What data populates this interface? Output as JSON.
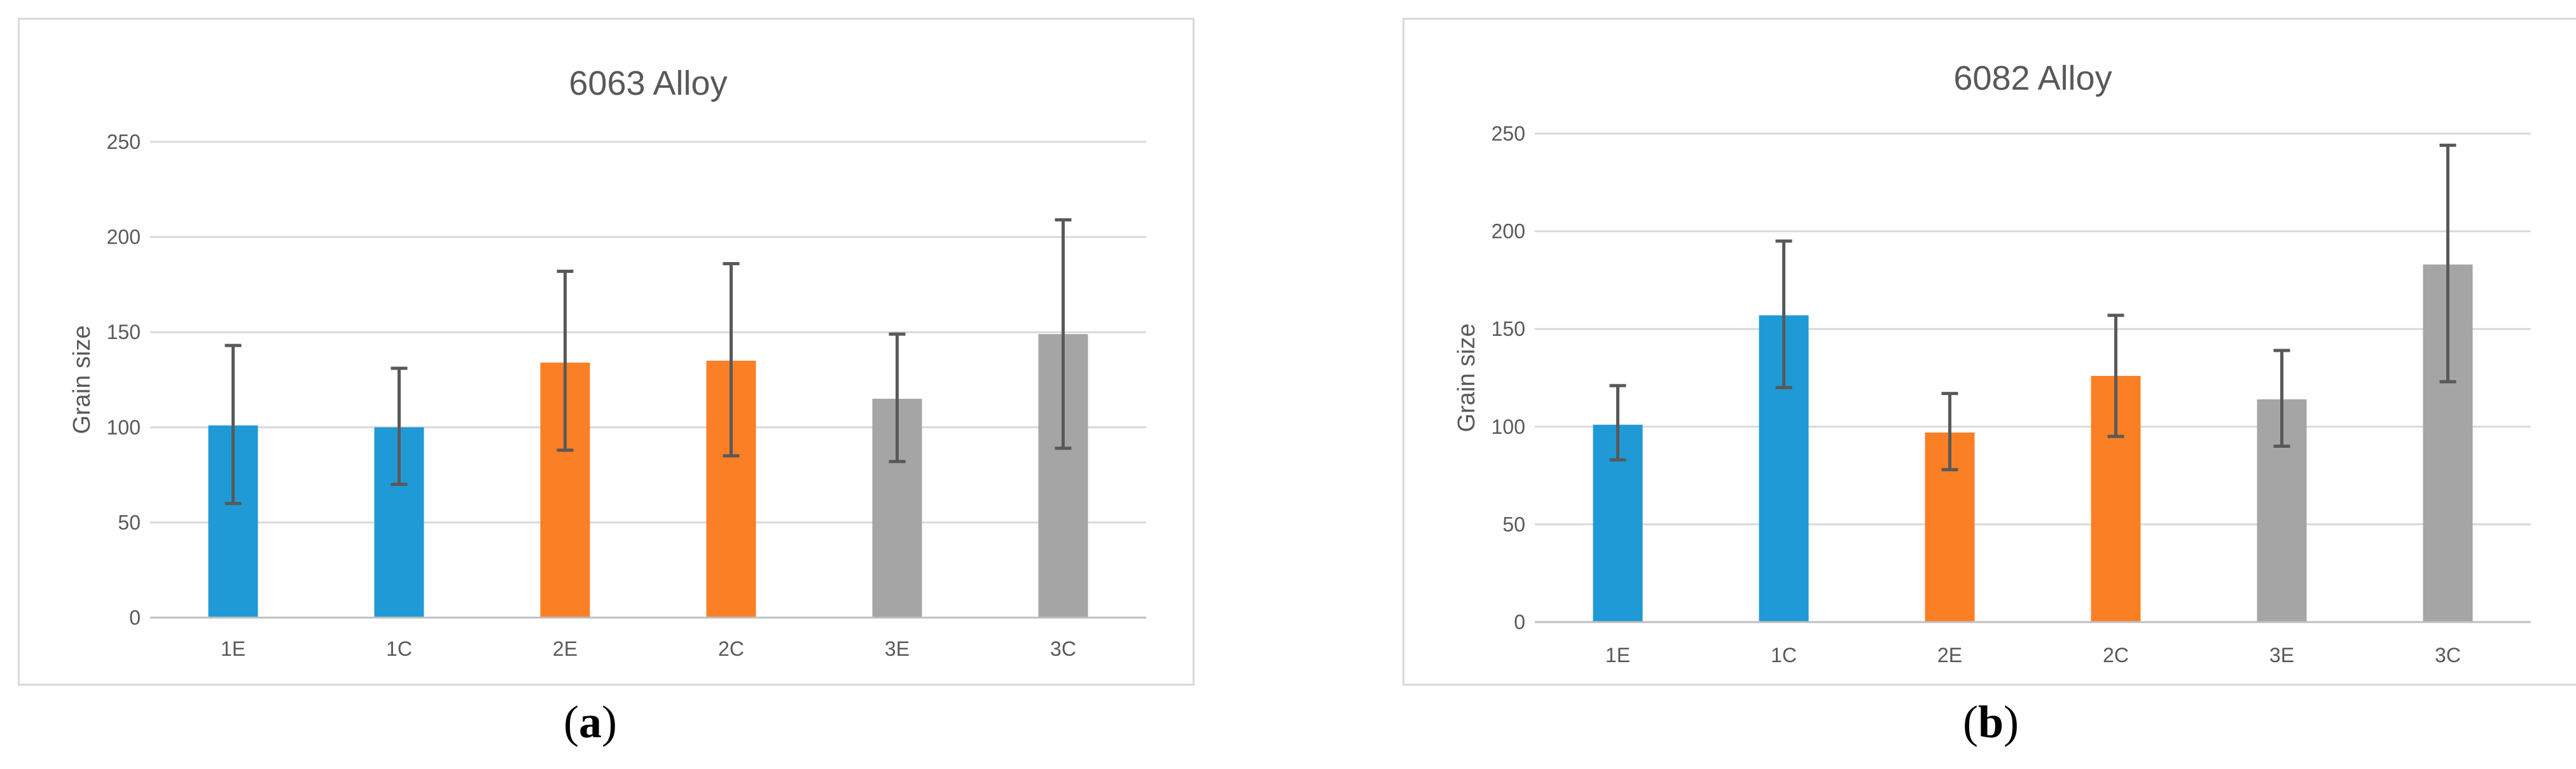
{
  "colors": {
    "E_C_group1": "#1f9ad6",
    "group2": "#fb7f25",
    "group3": "#a5a5a5"
  },
  "chart_data": [
    {
      "type": "bar",
      "title": "6063 Alloy",
      "xlabel": "",
      "ylabel": "Grain size",
      "ylim": [
        0,
        250
      ],
      "yticks": [
        0,
        50,
        100,
        150,
        200,
        250
      ],
      "grid": true,
      "categories": [
        "1E",
        "1C",
        "2E",
        "2C",
        "3E",
        "3C"
      ],
      "values": [
        101,
        100,
        134,
        135,
        115,
        149
      ],
      "error_low": [
        60,
        70,
        88,
        85,
        82,
        89
      ],
      "error_high": [
        143,
        131,
        182,
        186,
        149,
        209
      ],
      "bar_colors": [
        "#1f9ad6",
        "#1f9ad6",
        "#fb7f25",
        "#fb7f25",
        "#a5a5a5",
        "#a5a5a5"
      ],
      "caption_open": "(",
      "caption_letter": "a",
      "caption_close": ")"
    },
    {
      "type": "bar",
      "title": "6082 Alloy",
      "xlabel": "",
      "ylabel": "Grain size",
      "ylim": [
        0,
        250
      ],
      "yticks": [
        0,
        50,
        100,
        150,
        200,
        250
      ],
      "grid": true,
      "categories": [
        "1E",
        "1C",
        "2E",
        "2C",
        "3E",
        "3C"
      ],
      "values": [
        101,
        157,
        97,
        126,
        114,
        183
      ],
      "error_low": [
        83,
        120,
        78,
        95,
        90,
        123
      ],
      "error_high": [
        121,
        195,
        117,
        157,
        139,
        244
      ],
      "bar_colors": [
        "#1f9ad6",
        "#1f9ad6",
        "#fb7f25",
        "#fb7f25",
        "#a5a5a5",
        "#a5a5a5"
      ],
      "caption_open": "(",
      "caption_letter": "b",
      "caption_close": ")"
    }
  ]
}
